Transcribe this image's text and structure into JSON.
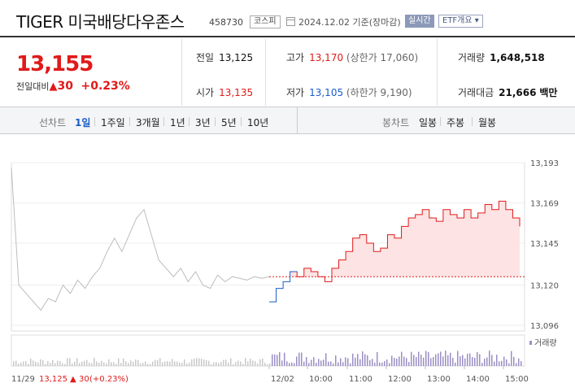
{
  "header": {
    "name": "TIGER 미국배당다우존스",
    "code": "458730",
    "market": "코스피",
    "date_label": "2024.12.02 기준(장마감)",
    "realtime_label": "실시간",
    "etf_info_label": "ETF개요 ▾"
  },
  "price": {
    "current": "13,155",
    "change_label": "전일대비",
    "change_arrow": "▲",
    "change_amount": "30",
    "change_percent": "+0.23%"
  },
  "stats": {
    "prev_close_label": "전일",
    "prev_close": "13,125",
    "open_label": "시가",
    "open": "13,135",
    "high_label": "고가",
    "high": "13,170",
    "upper_limit": "(상한가 17,060)",
    "low_label": "저가",
    "low": "13,105",
    "lower_limit": "(하한가 9,190)",
    "volume_label": "거래량",
    "volume": "1,648,518",
    "amount_label": "거래대금",
    "amount": "21,666",
    "amount_unit": "백만"
  },
  "period_bar": {
    "line_label": "선차트",
    "line_periods": [
      "1일",
      "1주일",
      "3개월",
      "1년",
      "3년",
      "5년",
      "10년"
    ],
    "active_period": "1일",
    "candle_label": "봉차트",
    "candle_periods": [
      "일봉",
      "주봉",
      "월봉"
    ]
  },
  "colors": {
    "up": "#e01a1a",
    "down": "#1a5cc8",
    "prev_day": "#bdbdbd",
    "fill": "#fde3e3",
    "volume": "#9b8ec4"
  },
  "chart_data": {
    "type": "line",
    "y_ticks": [
      13193,
      13169,
      13145,
      13120,
      13096
    ],
    "y_tick_labels": [
      "13,193",
      "13,169",
      "13,145",
      "13,120",
      "13,096"
    ],
    "ylim": [
      13096,
      13193
    ],
    "reference_price": 13125,
    "x_labels": [
      "12/02",
      "10:00",
      "11:00",
      "12:00",
      "13:00",
      "14:00",
      "15:00"
    ],
    "volume_label": "거래량",
    "prev_day_series": [
      13190,
      13120,
      13115,
      13110,
      13105,
      13112,
      13110,
      13120,
      13115,
      13123,
      13118,
      13125,
      13130,
      13140,
      13148,
      13140,
      13150,
      13160,
      13165,
      13150,
      13135,
      13130,
      13125,
      13130,
      13122,
      13128,
      13120,
      13118,
      13126,
      13122,
      13125,
      13124,
      13123,
      13125,
      13124,
      13125
    ],
    "today_series": [
      13110,
      13118,
      13122,
      13128,
      13125,
      13130,
      13128,
      13125,
      13122,
      13130,
      13135,
      13140,
      13148,
      13150,
      13145,
      13140,
      13142,
      13150,
      13148,
      13155,
      13160,
      13162,
      13165,
      13160,
      13158,
      13165,
      13162,
      13160,
      13165,
      13160,
      13163,
      13168,
      13165,
      13170,
      13165,
      13160,
      13155
    ],
    "footer": {
      "date": "11/29",
      "price": "13,125",
      "arrow": "▲",
      "change": "30",
      "percent": "(+0.23%)"
    }
  }
}
